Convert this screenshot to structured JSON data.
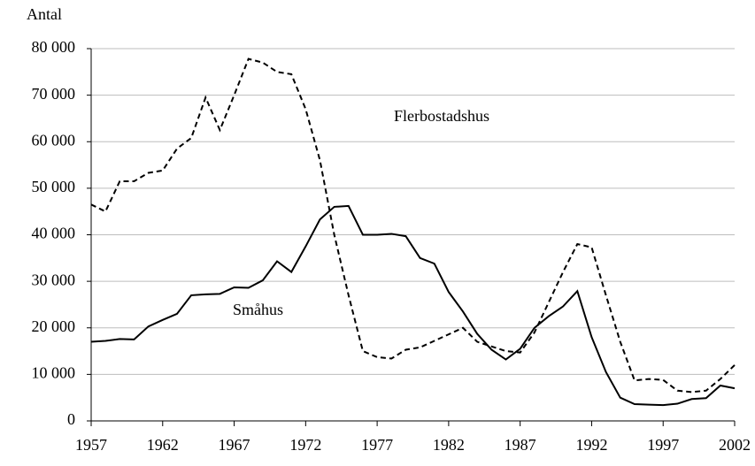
{
  "chart_data": {
    "type": "line",
    "y_label": "Antal",
    "x": [
      1957,
      1958,
      1959,
      1960,
      1961,
      1962,
      1963,
      1964,
      1965,
      1966,
      1967,
      1968,
      1969,
      1970,
      1971,
      1972,
      1973,
      1974,
      1975,
      1976,
      1977,
      1978,
      1979,
      1980,
      1981,
      1982,
      1983,
      1984,
      1985,
      1986,
      1987,
      1988,
      1989,
      1990,
      1991,
      1992,
      1993,
      1994,
      1995,
      1996,
      1997,
      1998,
      1999,
      2000,
      2001,
      2002
    ],
    "series": [
      {
        "name": "Flerbostadshus",
        "color": "#000000",
        "dashed": true,
        "values": [
          46500,
          45000,
          51500,
          51500,
          53300,
          53800,
          58500,
          60800,
          69500,
          62500,
          70000,
          77800,
          77000,
          75000,
          74500,
          67000,
          56000,
          40000,
          27000,
          15000,
          13700,
          13400,
          15300,
          15800,
          17200,
          18600,
          20000,
          17000,
          16000,
          15000,
          14700,
          19000,
          25500,
          32000,
          38000,
          37300,
          27000,
          17000,
          8700,
          9000,
          8800,
          6500,
          6200,
          6500,
          9000,
          12000
        ]
      },
      {
        "name": "Småhus",
        "color": "#000000",
        "dashed": false,
        "values": [
          17000,
          17200,
          17600,
          17500,
          20300,
          21700,
          23000,
          27000,
          27200,
          27300,
          28700,
          28600,
          30200,
          34300,
          32000,
          37500,
          43300,
          46000,
          46200,
          40000,
          40000,
          40200,
          39700,
          35000,
          33800,
          27700,
          23500,
          18700,
          15300,
          13200,
          15500,
          20000,
          22500,
          24600,
          27900,
          18000,
          10500,
          5000,
          3600,
          3500,
          3400,
          3700,
          4700,
          4900,
          7600,
          7000
        ]
      }
    ],
    "xlim": [
      1957,
      2002
    ],
    "xticks": [
      1957,
      1962,
      1967,
      1972,
      1977,
      1982,
      1987,
      1992,
      1997,
      2002
    ],
    "ylim": [
      0,
      80000
    ],
    "yticks": [
      {
        "value": 0,
        "label": "0"
      },
      {
        "value": 10000,
        "label": "10 000"
      },
      {
        "value": 20000,
        "label": "20 000"
      },
      {
        "value": 30000,
        "label": "30 000"
      },
      {
        "value": 40000,
        "label": "40 000"
      },
      {
        "value": 50000,
        "label": "50 000"
      },
      {
        "value": 60000,
        "label": "60 000"
      },
      {
        "value": 70000,
        "label": "70 000"
      },
      {
        "value": 80000,
        "label": "80 000"
      }
    ],
    "grid": true
  }
}
